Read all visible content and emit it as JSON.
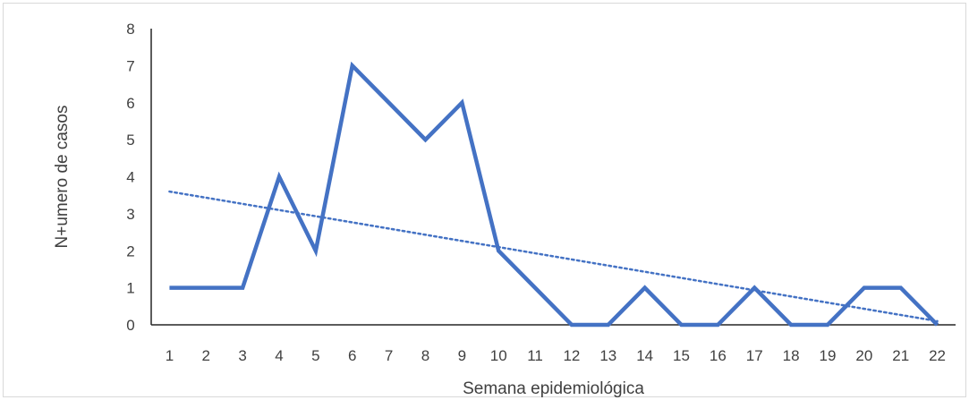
{
  "chart_data": {
    "type": "line",
    "title": "",
    "xlabel": "Semana epidemiológica",
    "ylabel": "N+umero de casos",
    "categories": [
      "1",
      "2",
      "3",
      "4",
      "5",
      "6",
      "7",
      "8",
      "9",
      "10",
      "11",
      "12",
      "13",
      "14",
      "15",
      "16",
      "17",
      "18",
      "19",
      "20",
      "21",
      "22"
    ],
    "series": [
      {
        "values": [
          1,
          1,
          1,
          4,
          2,
          7,
          6,
          5,
          6,
          2,
          1,
          0,
          0,
          1,
          0,
          0,
          1,
          0,
          0,
          1,
          1,
          0
        ],
        "color": "#4472c4",
        "style": "solid"
      }
    ],
    "trendline": {
      "type": "linear",
      "start": 3.6,
      "end": 0.1,
      "color": "#4472c4",
      "style": "dotted"
    },
    "ylim": [
      0,
      8
    ],
    "yticks": [
      0,
      1,
      2,
      3,
      4,
      5,
      6,
      7,
      8
    ],
    "grid": false,
    "legend": "none"
  }
}
